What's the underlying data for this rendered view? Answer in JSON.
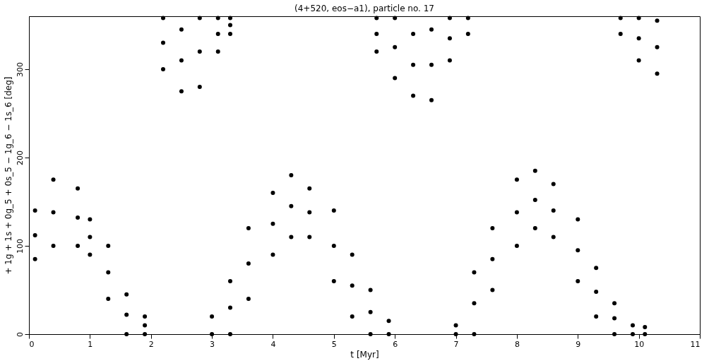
{
  "chart_data": {
    "type": "scatter",
    "title": "(4+520, eos−a1), particle no. 17",
    "xlabel": "t [Myr]",
    "ylabel": "+ 1g + 1s + 0g_5 + 0s_5 − 1g_6 − 1s_6 [deg]",
    "x": [
      0.1,
      0.1,
      0.1,
      0.4,
      0.4,
      0.4,
      0.8,
      0.8,
      0.8,
      1.0,
      1.0,
      1.0,
      1.3,
      1.3,
      1.3,
      1.6,
      1.6,
      1.6,
      1.9,
      1.9,
      1.9,
      2.2,
      2.2,
      2.2,
      2.5,
      2.5,
      2.5,
      2.8,
      2.8,
      2.8,
      3.1,
      3.1,
      3.1,
      3.3,
      3.3,
      3.3,
      3.0,
      3.0,
      3.3,
      3.3,
      3.3,
      3.6,
      3.6,
      3.6,
      4.0,
      4.0,
      4.0,
      4.3,
      4.3,
      4.3,
      4.6,
      4.6,
      4.6,
      5.0,
      5.0,
      5.0,
      5.3,
      5.3,
      5.3,
      5.6,
      5.6,
      5.6,
      5.9,
      5.9,
      5.7,
      5.7,
      5.7,
      6.0,
      6.0,
      6.0,
      6.3,
      6.3,
      6.3,
      6.6,
      6.6,
      6.6,
      6.9,
      6.9,
      6.9,
      7.2,
      7.2,
      7.0,
      7.0,
      7.3,
      7.3,
      7.3,
      7.6,
      7.6,
      7.6,
      8.0,
      8.0,
      8.0,
      8.3,
      8.3,
      8.3,
      8.6,
      8.6,
      8.6,
      9.0,
      9.0,
      9.0,
      9.3,
      9.3,
      9.3,
      9.6,
      9.6,
      9.6,
      9.9,
      9.9,
      10.1,
      10.1,
      9.7,
      9.7,
      10.0,
      10.0,
      10.0,
      10.3,
      10.3,
      10.3
    ],
    "values": [
      85,
      112,
      140,
      100,
      138,
      175,
      100,
      132,
      165,
      90,
      110,
      130,
      40,
      70,
      100,
      0,
      22,
      45,
      0,
      10,
      20,
      300,
      330,
      358,
      275,
      310,
      345,
      280,
      320,
      358,
      320,
      340,
      358,
      340,
      350,
      358,
      0,
      20,
      0,
      30,
      60,
      40,
      80,
      120,
      90,
      125,
      160,
      110,
      145,
      180,
      110,
      138,
      165,
      60,
      100,
      140,
      20,
      55,
      90,
      0,
      25,
      50,
      0,
      15,
      320,
      340,
      358,
      290,
      325,
      358,
      270,
      305,
      340,
      265,
      305,
      345,
      310,
      335,
      358,
      340,
      358,
      0,
      10,
      0,
      35,
      70,
      50,
      85,
      120,
      100,
      138,
      175,
      120,
      152,
      185,
      110,
      140,
      170,
      60,
      95,
      130,
      20,
      48,
      75,
      0,
      18,
      35,
      0,
      10,
      0,
      8,
      340,
      358,
      310,
      335,
      358,
      295,
      325,
      355
    ],
    "color": "#000000",
    "marker": "circle",
    "xlim": [
      0,
      11
    ],
    "xticks": [
      0,
      1,
      2,
      3,
      4,
      5,
      6,
      7,
      8,
      9,
      10,
      11
    ],
    "ylim": [
      0,
      360
    ],
    "yticks": [
      0,
      100,
      200,
      300
    ],
    "grid": false
  }
}
